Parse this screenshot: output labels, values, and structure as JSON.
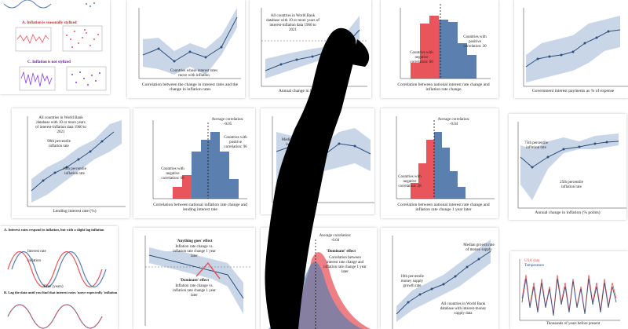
{
  "colors": {
    "band": "#c9d6e8",
    "line": "#2d4f7c",
    "red": "#e8565c",
    "blue": "#5b7fae",
    "purple": "#8e3fd6"
  },
  "tiles": {
    "t1": {
      "caption": "Correlation between the change in interest rates and the change in inflation rates",
      "note": "Countries whose interest rates move with inflation"
    },
    "t2": {
      "caption": "Annual change in lending rate",
      "note": "All countries in World Bank database with 10 or more years of interest-inflation data 1960 to 2021"
    },
    "t3": {
      "caption": "Correlation between national interest rate change and inflation rate change",
      "neg": "Countries with negative correlation: 60",
      "pos": "Countries with positive correlation: 30"
    },
    "t4": {
      "caption": "Government interest payments as % of expense"
    },
    "t5": {
      "caption": "Lending interest rate (%)",
      "note": "All countries in World Bank database with 10 or more years of interest-inflation data 1960 to 2021",
      "hi": "90th percentile inflation rate",
      "lo": "10th percentile inflation rate",
      "ylabel": "Annual inflation rate (%)"
    },
    "t6": {
      "caption": "Correlation between national inflation rate change and lending interest rate",
      "avg": "Average correlation: -0.05",
      "neg": "Countries with negative correlation: 60",
      "pos": "Countries with positive correlation: 96"
    },
    "t7": {
      "caption": "Annual change in inflation",
      "note": "Median percentile inflation rate"
    },
    "t8": {
      "caption": "Correlation between national interest rate change and inflation rate change 1 year later",
      "avg": "Average correlation: -0.04",
      "neg": "Countries with negative correlation: 28"
    },
    "t9": {
      "caption": "Annual change in inflation (% points)",
      "hi": "75th percentile inflation rate",
      "lo": "25th percentile inflation rate"
    },
    "t10": {
      "title": "A. Interest rates respond to inflation, but with a slight lag inflation",
      "t2": "B. Lag the data until you find that interest rates 'move expectedly' inflation",
      "a": "Interest rate",
      "b": "inflation",
      "x": "Time (years)"
    },
    "t11": {
      "a": "'Anything goes' effect",
      "b": "Inflation rate change vs. inflation rate change 1 year later",
      "c": "'Dominant' effect",
      "d": "Inflation rate change vs. inflation rate change 1 year later"
    },
    "t12": {
      "a": "'Dominant' effect",
      "b": "Correlation between interest rate change and inflation rate change 1 year later",
      "avg": "Average correlation: -0.04"
    },
    "t13": {
      "a": "Median growth rate of money supply",
      "b": "10th percentile money supply growth rate",
      "c": "All countries in World Bank database with interest-money supply data"
    },
    "t14": {
      "a": "USA data",
      "b": "Temperature",
      "x": "Thousands of years before present"
    },
    "t15": {
      "a": "A. Inflation is seasonally stylized",
      "b": "C. Inflation is not stylized"
    }
  }
}
